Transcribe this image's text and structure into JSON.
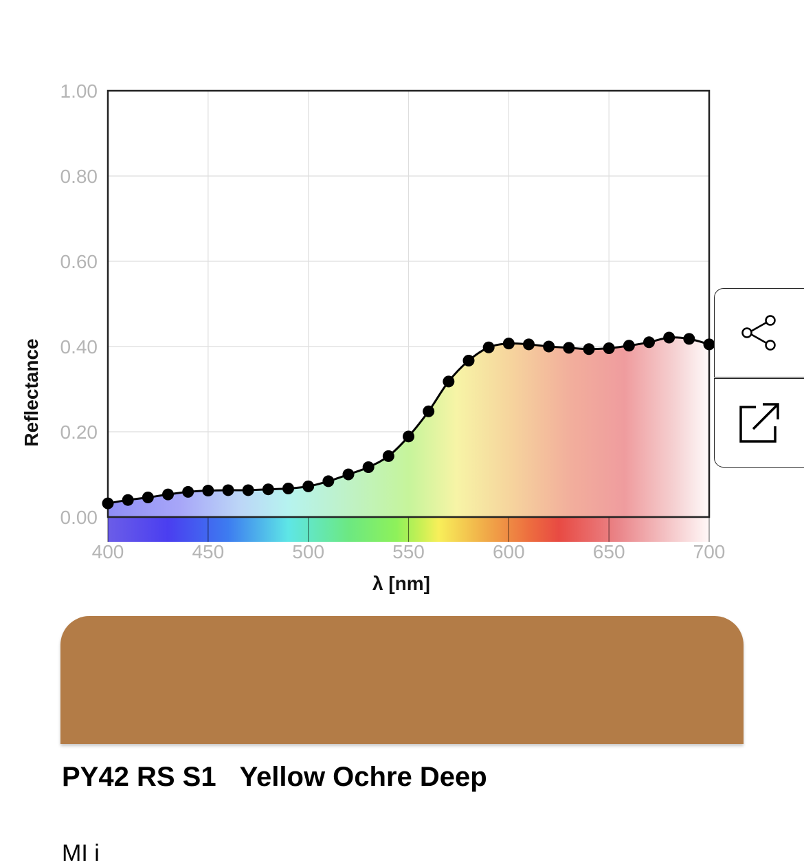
{
  "chart_data": {
    "type": "line",
    "xlabel": "λ [nm]",
    "ylabel": "Reflectance",
    "xlim": [
      400,
      700
    ],
    "ylim": [
      0,
      1
    ],
    "x_ticks": [
      "400",
      "450",
      "500",
      "550",
      "600",
      "650",
      "700"
    ],
    "y_ticks": [
      "0.00",
      "0.20",
      "0.40",
      "0.60",
      "0.80",
      "1.00"
    ],
    "grid": true,
    "markers": true,
    "fill_under": "visible spectrum gradient",
    "spectrum_bar": true,
    "x": [
      400,
      410,
      420,
      430,
      440,
      450,
      460,
      470,
      480,
      490,
      500,
      510,
      520,
      530,
      540,
      550,
      560,
      570,
      580,
      590,
      600,
      610,
      620,
      630,
      640,
      650,
      660,
      670,
      680,
      690,
      700
    ],
    "y": [
      0.032,
      0.04,
      0.046,
      0.053,
      0.059,
      0.062,
      0.063,
      0.063,
      0.065,
      0.067,
      0.072,
      0.084,
      0.1,
      0.117,
      0.143,
      0.189,
      0.248,
      0.318,
      0.367,
      0.398,
      0.407,
      0.405,
      0.4,
      0.397,
      0.394,
      0.396,
      0.402,
      0.41,
      0.421,
      0.418,
      0.405
    ]
  },
  "swatch": {
    "color": "#b37c47"
  },
  "pigment": {
    "code": "PY42 RS S1",
    "name": "Yellow Ochre Deep"
  },
  "brand": {
    "text": "MI  i"
  },
  "actions": {
    "share_icon": "share-icon",
    "open_icon": "external-link-icon"
  }
}
